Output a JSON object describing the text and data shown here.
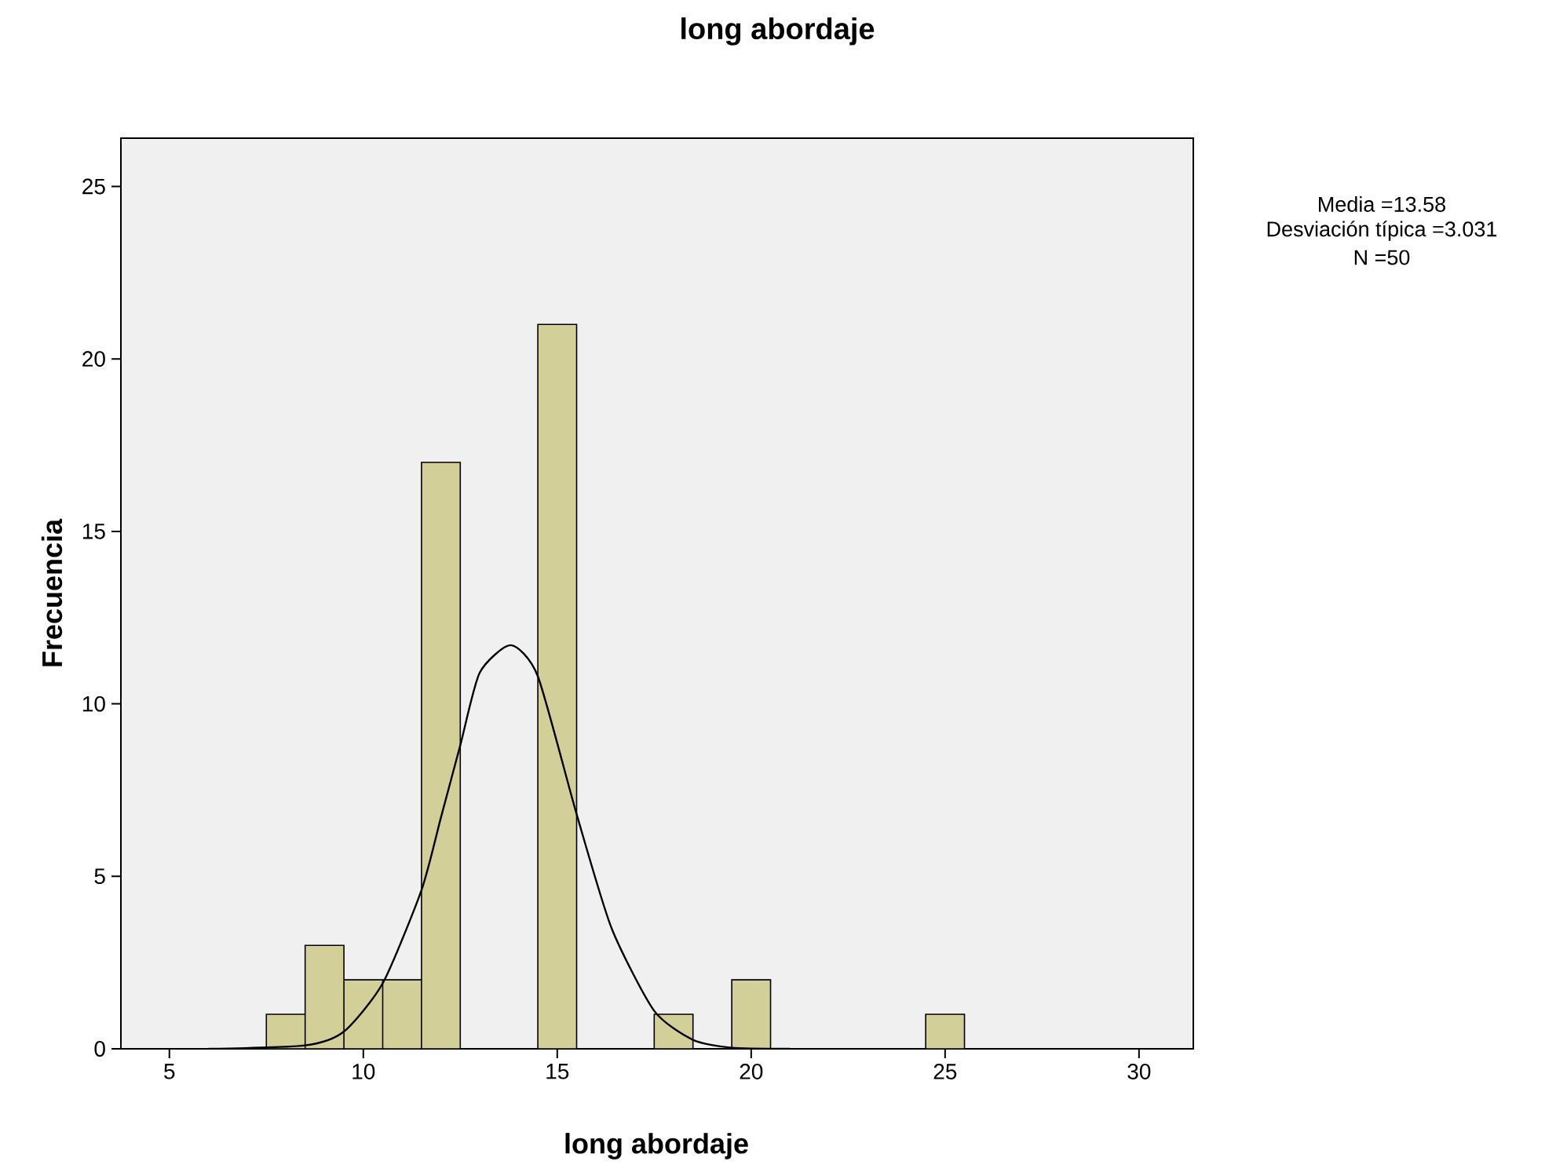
{
  "chart_data": {
    "type": "histogram",
    "title": "long abordaje",
    "xlabel": "long abordaje",
    "ylabel": "Frecuencia",
    "annotations": [
      "Media =13.58",
      "Desviación típica =3.031",
      "N =50"
    ],
    "series": [
      {
        "color": "#d3cf98",
        "bins": [
          7.5,
          8.5,
          9.5,
          10.5,
          11.5,
          12.5,
          13.5,
          14.5,
          15.5,
          16.5,
          17.5,
          18.5,
          19.5,
          20.5,
          21.5,
          22.5,
          23.5,
          24.5,
          25.5
        ],
        "values": [
          1,
          3,
          2,
          2,
          17,
          0,
          0,
          21,
          0,
          0,
          1,
          0,
          2,
          0,
          0,
          0,
          0,
          1
        ]
      },
      {
        "type": "line",
        "color": "#000000",
        "x": [
          6,
          8.5,
          9.5,
          10.5,
          11.5,
          12,
          12.5,
          13,
          13.8,
          14.5,
          15.5,
          16.4,
          17.5,
          18.5,
          19.5,
          21
        ],
        "values": [
          0,
          0.1,
          0.5,
          1.9,
          4.6,
          6.7,
          8.8,
          10.9,
          11.7,
          10.8,
          6.8,
          3.5,
          1.1,
          0.26,
          0.03,
          0
        ]
      }
    ],
    "xlim": [
      3.75,
      31.4
    ],
    "ylim": [
      0,
      26.4
    ],
    "xticks": [
      5,
      10,
      15,
      20,
      25,
      30
    ],
    "yticks": [
      0,
      5,
      10,
      15,
      20,
      25
    ]
  }
}
